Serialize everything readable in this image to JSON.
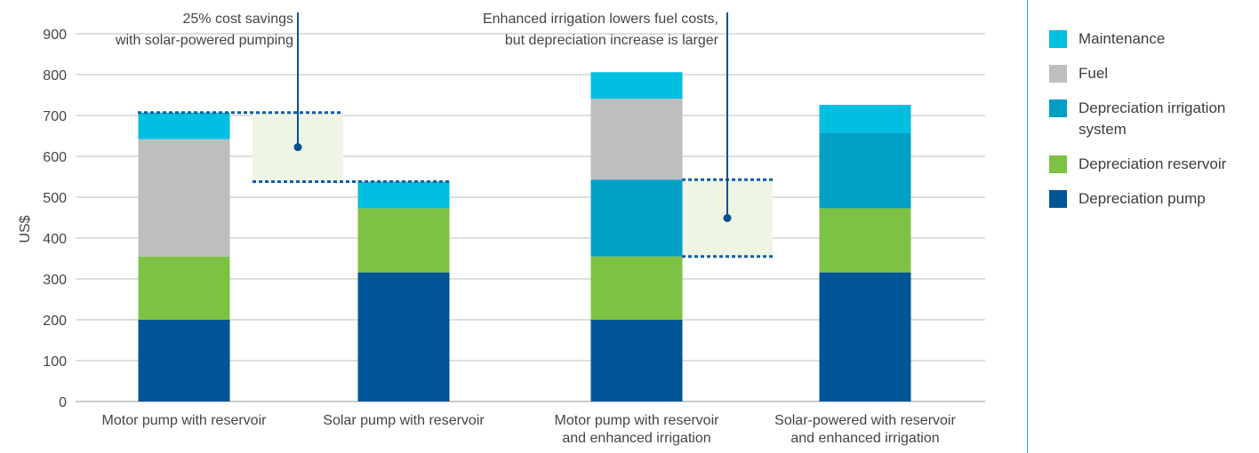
{
  "chart_data": {
    "type": "bar",
    "stacked": true,
    "ylabel": "US$",
    "ylim": [
      0,
      900
    ],
    "yticks": [
      0,
      100,
      200,
      300,
      400,
      500,
      600,
      700,
      800,
      900
    ],
    "grid": true,
    "legend_position": "right",
    "categories": [
      [
        "Motor pump with reservoir"
      ],
      [
        "Solar pump with reservoir"
      ],
      [
        "Motor pump with reservoir",
        "and enhanced irrigation"
      ],
      [
        "Solar-powered with reservoir",
        "and enhanced irrigation"
      ]
    ],
    "series": [
      {
        "name": "Depreciation pump",
        "color": "#005596",
        "values": [
          200,
          316,
          200,
          316
        ]
      },
      {
        "name": "Depreciation reservoir",
        "color": "#7dc242",
        "values": [
          155,
          157,
          155,
          157
        ]
      },
      {
        "name": "Depreciation irrigation system",
        "color": "#00a0c6",
        "values": [
          0,
          0,
          188,
          185
        ]
      },
      {
        "name": "Fuel",
        "color": "#bcbec0",
        "values": [
          287,
          0,
          198,
          0
        ]
      },
      {
        "name": "Maintenance",
        "color": "#00bfe0",
        "values": [
          65,
          65,
          65,
          68
        ]
      }
    ],
    "legend_order": [
      "Maintenance",
      "Fuel",
      "Depreciation irrigation system",
      "Depreciation reservoir",
      "Depreciation pump"
    ],
    "annotations": [
      {
        "lines": [
          "25% cost savings",
          "with solar-powered pumping"
        ],
        "from_value": 707,
        "to_value": 538,
        "between": [
          0,
          1
        ]
      },
      {
        "lines": [
          "Enhanced irrigation lowers fuel costs,",
          "but depreciation increase is larger"
        ],
        "from_value": 543,
        "to_value": 355,
        "between": [
          2,
          3
        ]
      }
    ]
  }
}
